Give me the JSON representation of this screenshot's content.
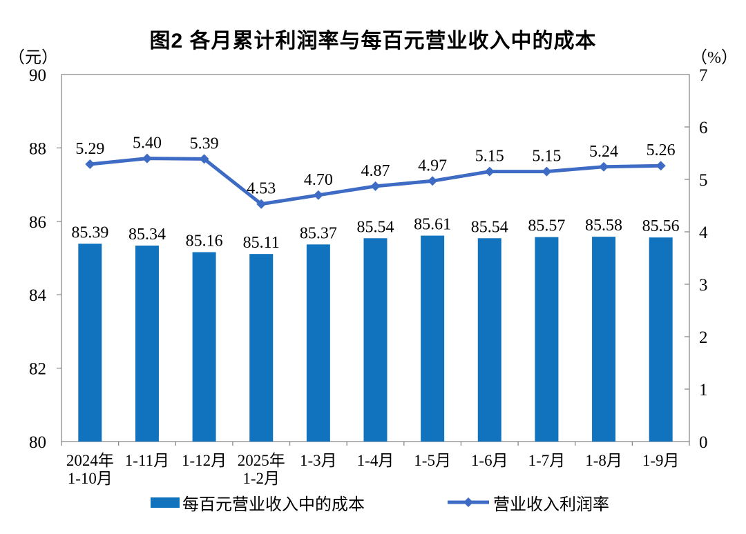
{
  "chart_data": {
    "type": "combo",
    "title": "图2 各月累计利润率与每百元营业收入中的成本",
    "categories": [
      [
        "2024年",
        "1-10月"
      ],
      [
        "1-11月"
      ],
      [
        "1-12月"
      ],
      [
        "2025年",
        "1-2月"
      ],
      [
        "1-3月"
      ],
      [
        "1-4月"
      ],
      [
        "1-5月"
      ],
      [
        "1-6月"
      ],
      [
        "1-7月"
      ],
      [
        "1-8月"
      ],
      [
        "1-9月"
      ]
    ],
    "series": [
      {
        "name": "每百元营业收入中的成本",
        "type": "bar",
        "axis": "left",
        "color": "#1173BE",
        "values": [
          85.39,
          85.34,
          85.16,
          85.11,
          85.37,
          85.54,
          85.61,
          85.54,
          85.57,
          85.58,
          85.56
        ]
      },
      {
        "name": "营业收入利润率",
        "type": "line",
        "axis": "right",
        "color": "#3E6CC5",
        "values": [
          5.29,
          5.4,
          5.39,
          4.53,
          4.7,
          4.87,
          4.97,
          5.15,
          5.15,
          5.24,
          5.26
        ]
      }
    ],
    "ylabel_left": "（元）",
    "ylabel_right": "（%）",
    "ylim_left": [
      80,
      90
    ],
    "ylim_right": [
      0,
      7
    ],
    "left_tick_step": 2,
    "right_tick_step": 1,
    "grid": false,
    "legend_position": "bottom",
    "value_label_decimals": 2
  }
}
